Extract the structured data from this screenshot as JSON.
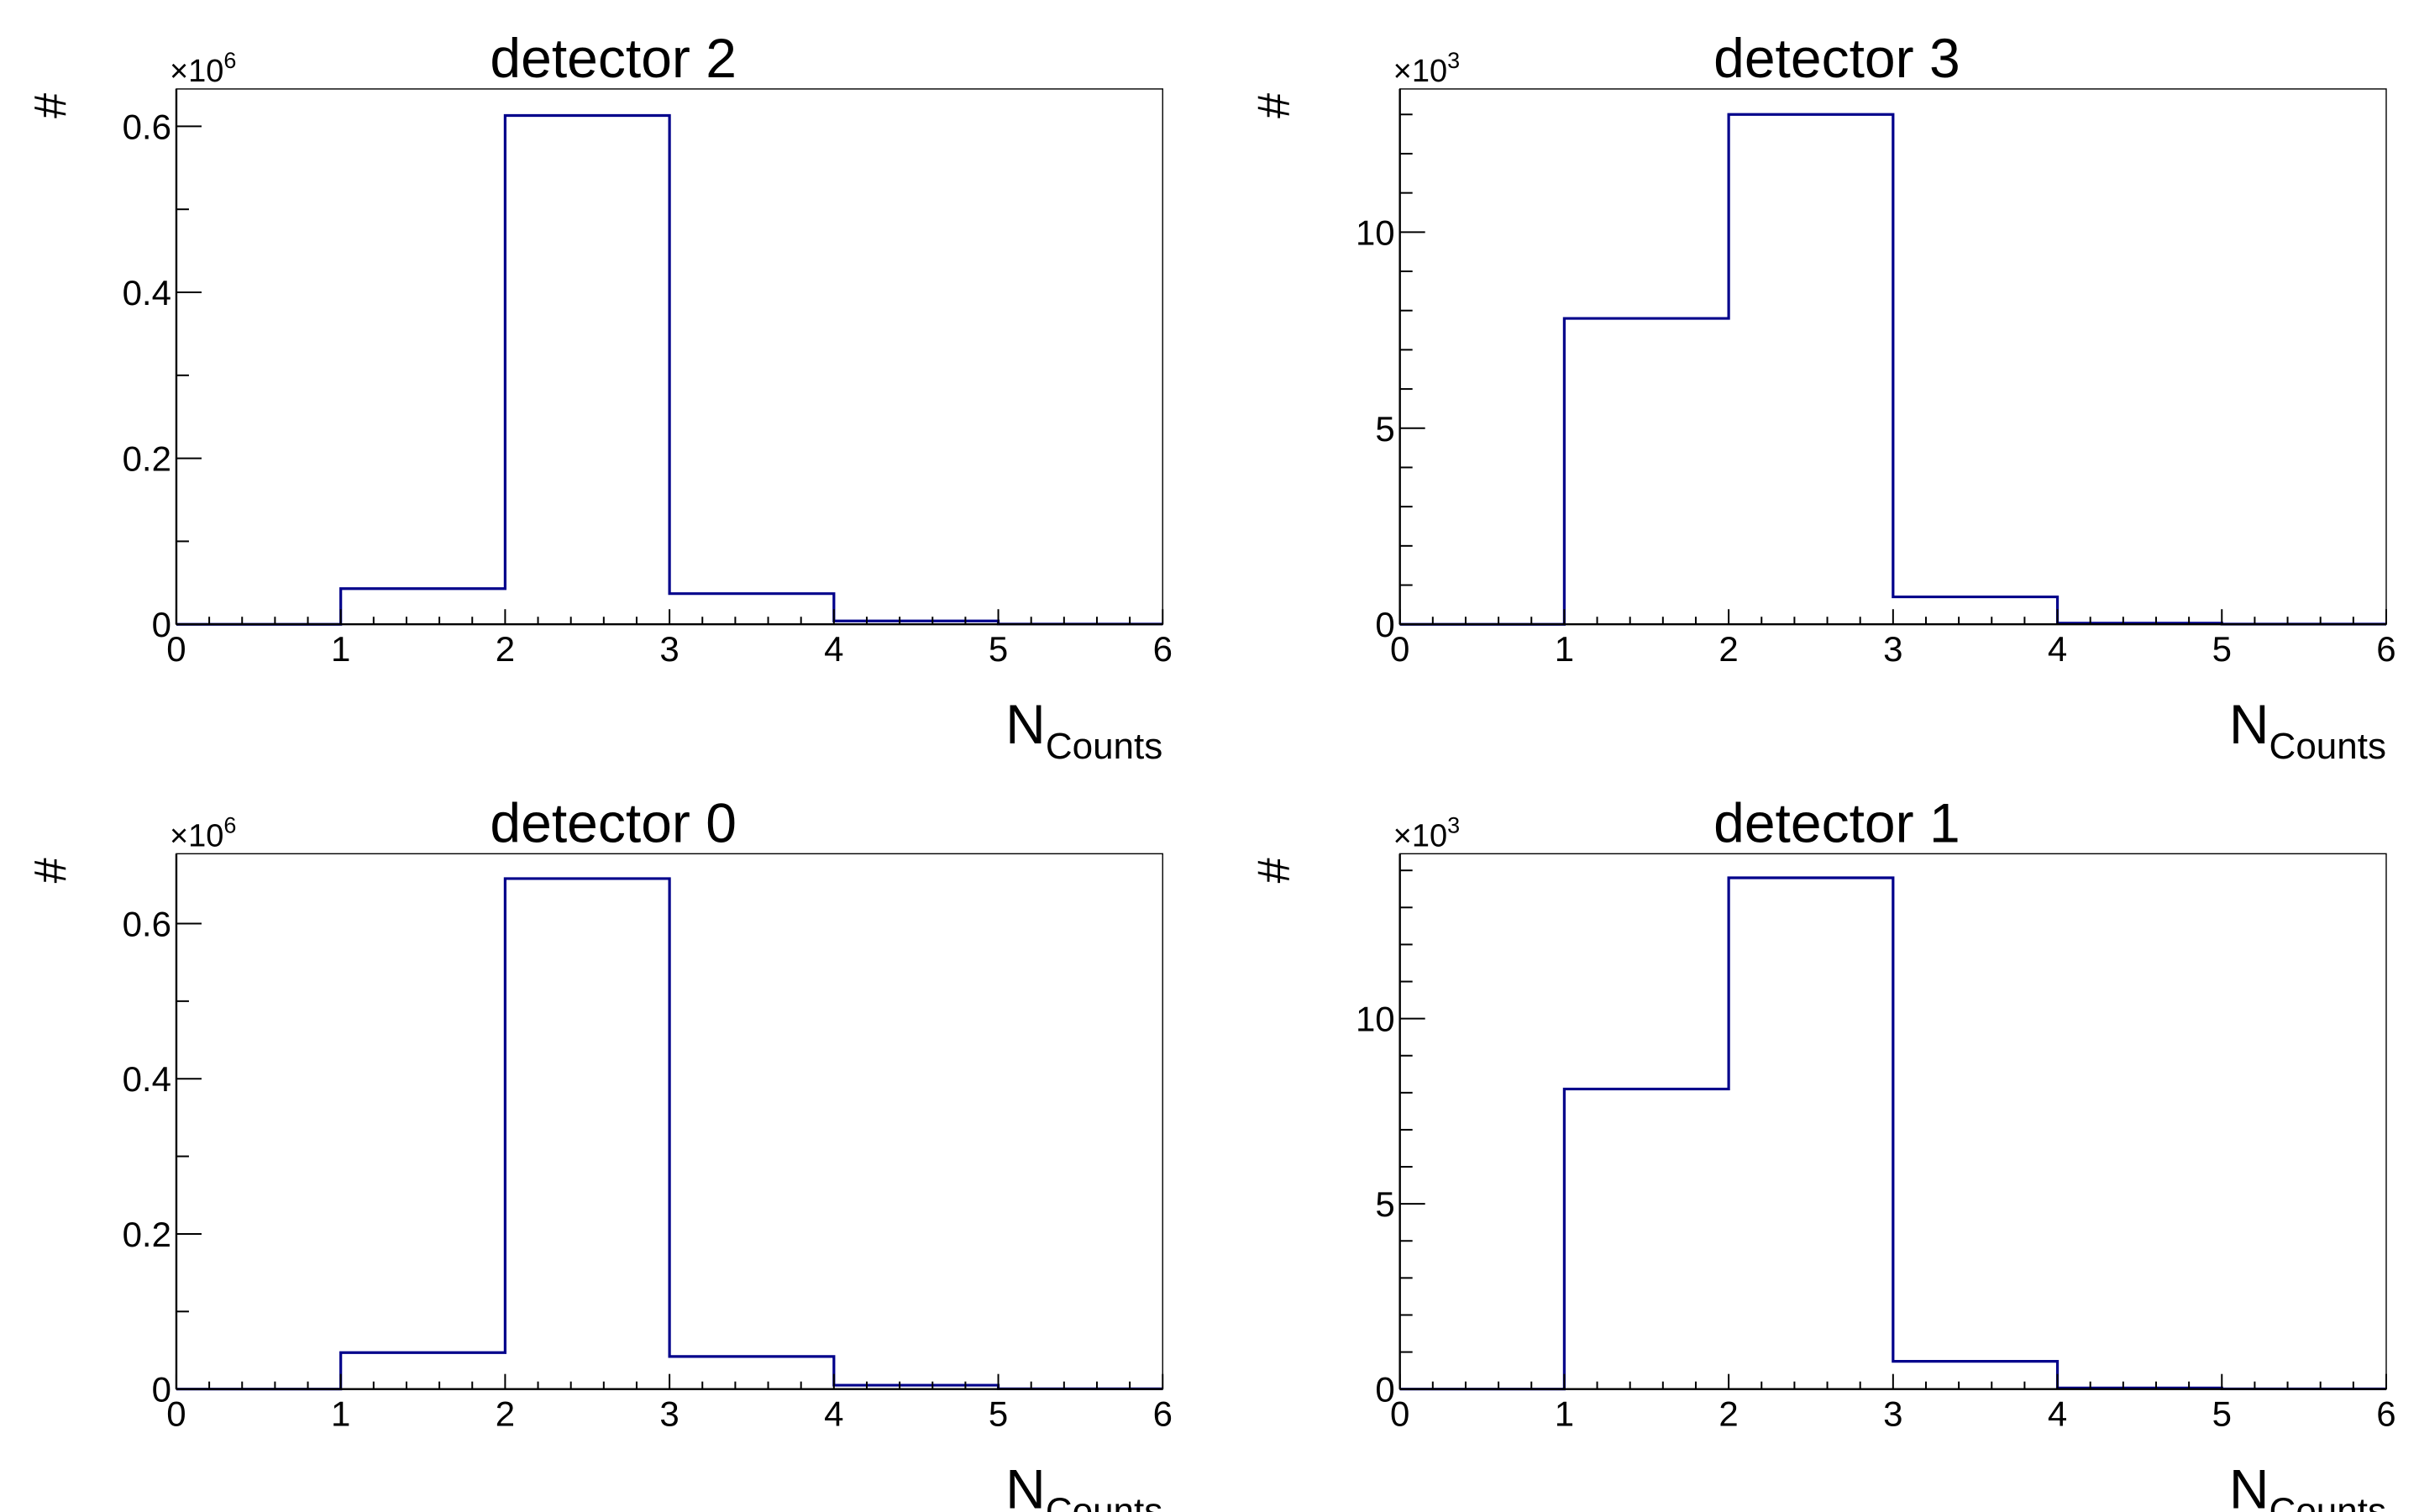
{
  "colors": {
    "line": "#00008b",
    "axis": "#000000",
    "frame": "#000000"
  },
  "chart_data": [
    {
      "type": "bar",
      "title": "detector 2",
      "xlabel_main": "N",
      "xlabel_sub": "Counts",
      "ylabel": "#",
      "exponent_base": "×10",
      "exponent_power": "6",
      "bin_edges": [
        0,
        1,
        2,
        3,
        4,
        5,
        6
      ],
      "values": [
        0,
        0.043,
        0.613,
        0.037,
        0.004,
        0.0003
      ],
      "xlim": [
        0,
        6
      ],
      "ylim": [
        0,
        0.645
      ],
      "xticks": [
        0,
        1,
        2,
        3,
        4,
        5,
        6
      ],
      "xtick_labels": [
        "0",
        "1",
        "2",
        "3",
        "4",
        "5",
        "6"
      ],
      "yticks": [
        0,
        0.2,
        0.4,
        0.6
      ],
      "ytick_labels": [
        "0",
        "0.2",
        "0.4",
        "0.6"
      ],
      "yminor_step": 0.1,
      "grid": false
    },
    {
      "type": "bar",
      "title": "detector 3",
      "xlabel_main": "N",
      "xlabel_sub": "Counts",
      "ylabel": "#",
      "exponent_base": "×10",
      "exponent_power": "3",
      "bin_edges": [
        0,
        1,
        2,
        3,
        4,
        5,
        6
      ],
      "values": [
        0,
        7.8,
        13.0,
        0.7,
        0.03,
        0.005
      ],
      "xlim": [
        0,
        6
      ],
      "ylim": [
        0,
        13.65
      ],
      "xticks": [
        0,
        1,
        2,
        3,
        4,
        5,
        6
      ],
      "xtick_labels": [
        "0",
        "1",
        "2",
        "3",
        "4",
        "5",
        "6"
      ],
      "yticks": [
        0,
        5,
        10
      ],
      "ytick_labels": [
        "0",
        "5",
        "10"
      ],
      "yminor_step": 1,
      "grid": false
    },
    {
      "type": "bar",
      "title": "detector 0",
      "xlabel_main": "N",
      "xlabel_sub": "Counts",
      "ylabel": "#",
      "exponent_base": "×10",
      "exponent_power": "6",
      "bin_edges": [
        0,
        1,
        2,
        3,
        4,
        5,
        6
      ],
      "values": [
        0,
        0.047,
        0.658,
        0.042,
        0.005,
        0.0004
      ],
      "xlim": [
        0,
        6
      ],
      "ylim": [
        0,
        0.69
      ],
      "xticks": [
        0,
        1,
        2,
        3,
        4,
        5,
        6
      ],
      "xtick_labels": [
        "0",
        "1",
        "2",
        "3",
        "4",
        "5",
        "6"
      ],
      "yticks": [
        0,
        0.2,
        0.4,
        0.6
      ],
      "ytick_labels": [
        "0",
        "0.2",
        "0.4",
        "0.6"
      ],
      "yminor_step": 0.1,
      "grid": false
    },
    {
      "type": "bar",
      "title": "detector 1",
      "xlabel_main": "N",
      "xlabel_sub": "Counts",
      "ylabel": "#",
      "exponent_base": "×10",
      "exponent_power": "3",
      "bin_edges": [
        0,
        1,
        2,
        3,
        4,
        5,
        6
      ],
      "values": [
        0,
        8.1,
        13.8,
        0.75,
        0.03,
        0.005
      ],
      "xlim": [
        0,
        6
      ],
      "ylim": [
        0,
        14.45
      ],
      "xticks": [
        0,
        1,
        2,
        3,
        4,
        5,
        6
      ],
      "xtick_labels": [
        "0",
        "1",
        "2",
        "3",
        "4",
        "5",
        "6"
      ],
      "yticks": [
        0,
        5,
        10
      ],
      "ytick_labels": [
        "0",
        "5",
        "10"
      ],
      "yminor_step": 1,
      "grid": false
    }
  ]
}
